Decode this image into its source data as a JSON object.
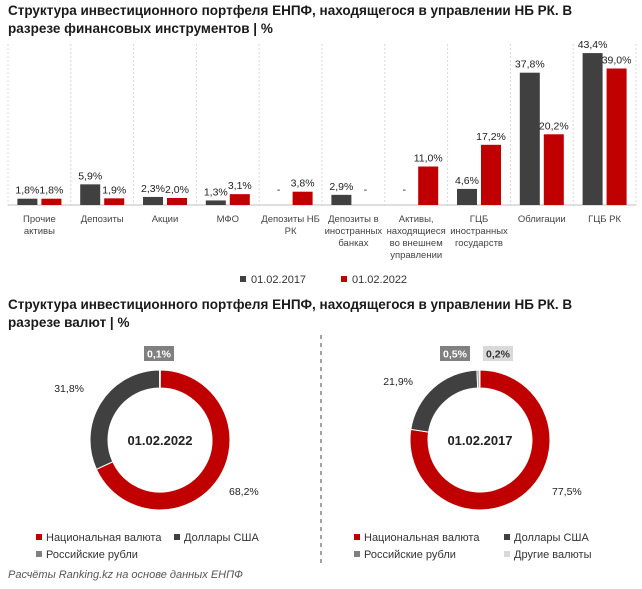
{
  "colors": {
    "series1": "#404040",
    "series2": "#c00000",
    "rub": "#808080",
    "other": "#d9d9d9"
  },
  "titles": {
    "chart1": "Структура инвестиционного портфеля ЕНПФ, находящегося в управлении НБ РК. В разрезе финансовых инструментов | %",
    "chart2": "Структура инвестиционного портфеля ЕНПФ, находящегося в управлении НБ РК. В разрезе валют | %"
  },
  "footer": "Расчёты Ranking.kz на основе данных ЕНПФ",
  "chart_data": [
    {
      "type": "bar",
      "categories": [
        "Прочие активы",
        "Депозиты",
        "Акции",
        "МФО",
        "Депозиты НБ РК",
        "Депозиты в иностранных банках",
        "Активы, находящиеся во внешнем управлении",
        "ГЦБ иностранных государств",
        "Облигации",
        "ГЦБ РК"
      ],
      "category_lines": [
        [
          "Прочие",
          "активы"
        ],
        [
          "Депозиты"
        ],
        [
          "Акции"
        ],
        [
          "МФО"
        ],
        [
          "Депозиты НБ",
          "РК"
        ],
        [
          "Депозиты в",
          "иностранных",
          "банках"
        ],
        [
          "Активы,",
          "находящиеся",
          "во внешнем",
          "управлении"
        ],
        [
          "ГЦБ",
          "иностранных",
          "государств"
        ],
        [
          "Облигации"
        ],
        [
          "ГЦБ РК"
        ]
      ],
      "series": [
        {
          "name": "01.02.2017",
          "values": [
            1.8,
            5.9,
            2.3,
            1.3,
            null,
            2.9,
            null,
            4.6,
            37.8,
            43.4
          ],
          "labels": [
            "1,8%",
            "5,9%",
            "2,3%",
            "1,3%",
            "-",
            "2,9%",
            "-",
            "4,6%",
            "37,8%",
            "43,4%"
          ]
        },
        {
          "name": "01.02.2022",
          "values": [
            1.8,
            1.9,
            2.0,
            3.1,
            3.8,
            null,
            11.0,
            17.2,
            20.2,
            39.0
          ],
          "labels": [
            "1,8%",
            "1,9%",
            "2,0%",
            "3,1%",
            "3,8%",
            "-",
            "11,0%",
            "17,2%",
            "20,2%",
            "39,0%"
          ]
        }
      ]
    },
    {
      "type": "pie",
      "center_label": "01.02.2022",
      "slices": [
        {
          "name": "Национальная валюта",
          "value": 68.2,
          "label": "68,2%"
        },
        {
          "name": "Доллары США",
          "value": 31.8,
          "label": "31,8%"
        },
        {
          "name": "Российские рубли",
          "value": 0.1,
          "label": "0,1%"
        }
      ],
      "legend": [
        "Национальная валюта",
        "Доллары США",
        "Российские рубли"
      ]
    },
    {
      "type": "pie",
      "center_label": "01.02.2017",
      "slices": [
        {
          "name": "Национальная валюта",
          "value": 77.5,
          "label": "77,5%"
        },
        {
          "name": "Доллары США",
          "value": 21.9,
          "label": "21,9%"
        },
        {
          "name": "Российские рубли",
          "value": 0.5,
          "label": "0,5%"
        },
        {
          "name": "Другие валюты",
          "value": 0.2,
          "label": "0,2%"
        }
      ],
      "legend": [
        "Национальная валюта",
        "Доллары США",
        "Российские рубли",
        "Другие валюты"
      ]
    }
  ]
}
